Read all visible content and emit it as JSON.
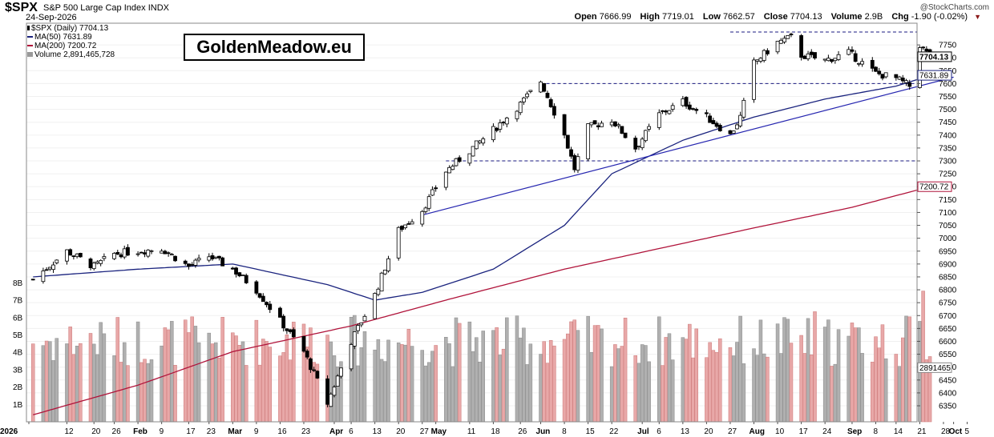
{
  "header": {
    "ticker": "$SPX",
    "index_name": "S&P 500 Large Cap Index",
    "exchange": "INDX",
    "date": "24-Sep-2026",
    "credit": "@StockCharts.com",
    "open_label": "Open",
    "open": "7666.99",
    "high_label": "High",
    "high": "7719.01",
    "low_label": "Low",
    "low": "7662.57",
    "close_label": "Close",
    "close": "7704.13",
    "volume_label": "Volume",
    "volume": "2.9B",
    "chg_label": "Chg",
    "chg": "-1.90 (-0.02%)"
  },
  "legend": {
    "price": "$SPX (Daily) 7704.13",
    "ma50": "MA(50) 7631.89",
    "ma200": "MA(200) 7200.72",
    "volume": "Volume 2,891,465,728"
  },
  "watermark": "GoldenMeadow.eu",
  "colors": {
    "up": "#000000",
    "down": "#000000",
    "vol_up": "#b0b0b0",
    "vol_down": "#e8a8a8",
    "ma50": "#1a237e",
    "ma200": "#b0133a",
    "trend": "#2626b0",
    "ref": "#1a1a80"
  },
  "chart_data": {
    "type": "candlestick",
    "title": "$SPX S&P 500 Large Cap Index INDX",
    "ylim": [
      6310,
      7800
    ],
    "yticks": [
      6350,
      6400,
      6450,
      6500,
      6550,
      6600,
      6650,
      6700,
      6750,
      6800,
      6850,
      6900,
      6950,
      7000,
      7050,
      7100,
      7150,
      7200,
      7250,
      7300,
      7350,
      7400,
      7450,
      7500,
      7550,
      7600,
      7650,
      7700,
      7750
    ],
    "y_labels": {
      "close": "7704.13",
      "ma50": "7631.89",
      "ma200": "7200.72",
      "volume": "2891465"
    },
    "volume_ticks": [
      "1B",
      "2B",
      "3B",
      "4B",
      "5B",
      "6B",
      "7B",
      "8B"
    ],
    "x_labels": [
      "2026",
      "12",
      "20",
      "26",
      "Feb",
      "9",
      "17",
      "23",
      "Mar",
      "9",
      "16",
      "23",
      "Apr",
      "6",
      "13",
      "20",
      "27",
      "May",
      "11",
      "18",
      "26",
      "Jun",
      "8",
      "15",
      "22",
      "Jul",
      "6",
      "13",
      "20",
      "27",
      "Aug",
      "10",
      "17",
      "24",
      "Sep",
      "8",
      "14",
      "21",
      "28",
      "Oct",
      "5"
    ],
    "x_major": [
      "2026",
      "Feb",
      "Mar",
      "Apr",
      "May",
      "Jun",
      "Jul",
      "Aug",
      "Sep",
      "Oct"
    ],
    "close_key_points": [
      [
        "2026-01-02",
        6840
      ],
      [
        "2026-01-12",
        6950
      ],
      [
        "2026-01-20",
        6890
      ],
      [
        "2026-01-26",
        6940
      ],
      [
        "2026-02-09",
        6960
      ],
      [
        "2026-02-17",
        6890
      ],
      [
        "2026-02-23",
        6930
      ],
      [
        "2026-03-02",
        6880
      ],
      [
        "2026-03-09",
        6800
      ],
      [
        "2026-03-16",
        6680
      ],
      [
        "2026-03-23",
        6560
      ],
      [
        "2026-03-30",
        6360
      ],
      [
        "2026-04-06",
        6600
      ],
      [
        "2026-04-13",
        6780
      ],
      [
        "2026-04-20",
        7030
      ],
      [
        "2026-04-27",
        7110
      ],
      [
        "2026-05-04",
        7260
      ],
      [
        "2026-05-11",
        7340
      ],
      [
        "2026-05-18",
        7420
      ],
      [
        "2026-05-26",
        7520
      ],
      [
        "2026-06-01",
        7610
      ],
      [
        "2026-06-08",
        7400
      ],
      [
        "2026-06-11",
        7270
      ],
      [
        "2026-06-15",
        7430
      ],
      [
        "2026-06-22",
        7460
      ],
      [
        "2026-06-29",
        7350
      ],
      [
        "2026-07-06",
        7480
      ],
      [
        "2026-07-13",
        7530
      ],
      [
        "2026-07-20",
        7470
      ],
      [
        "2026-07-27",
        7400
      ],
      [
        "2026-07-30",
        7470
      ],
      [
        "2026-08-03",
        7680
      ],
      [
        "2026-08-10",
        7760
      ],
      [
        "2026-08-14",
        7780
      ],
      [
        "2026-08-17",
        7710
      ],
      [
        "2026-08-24",
        7690
      ],
      [
        "2026-08-31",
        7720
      ],
      [
        "2026-09-08",
        7640
      ],
      [
        "2026-09-14",
        7620
      ],
      [
        "2026-09-18",
        7590
      ],
      [
        "2026-09-21",
        7750
      ],
      [
        "2026-09-24",
        7704
      ]
    ],
    "ma50_key_points": [
      [
        "2026-01-02",
        6850
      ],
      [
        "2026-02-02",
        6880
      ],
      [
        "2026-03-02",
        6900
      ],
      [
        "2026-03-30",
        6820
      ],
      [
        "2026-04-13",
        6760
      ],
      [
        "2026-04-27",
        6790
      ],
      [
        "2026-05-18",
        6880
      ],
      [
        "2026-06-08",
        7050
      ],
      [
        "2026-06-22",
        7250
      ],
      [
        "2026-07-13",
        7380
      ],
      [
        "2026-08-03",
        7470
      ],
      [
        "2026-08-24",
        7540
      ],
      [
        "2026-09-14",
        7590
      ],
      [
        "2026-09-24",
        7631
      ]
    ],
    "ma200_key_points": [
      [
        "2026-01-02",
        6315
      ],
      [
        "2026-02-02",
        6430
      ],
      [
        "2026-03-02",
        6560
      ],
      [
        "2026-04-06",
        6660
      ],
      [
        "2026-05-04",
        6760
      ],
      [
        "2026-06-08",
        6880
      ],
      [
        "2026-07-06",
        6960
      ],
      [
        "2026-08-03",
        7040
      ],
      [
        "2026-09-01",
        7120
      ],
      [
        "2026-09-24",
        7200
      ]
    ],
    "trendline": [
      [
        "2026-04-27",
        7090
      ],
      [
        "2026-10-01",
        7625
      ]
    ],
    "ref_lines": [
      {
        "level": 7800,
        "from": "2026-07-27",
        "to": "2026-10-05"
      },
      {
        "level": 7600,
        "from": "2026-06-01",
        "to": "2026-10-05"
      },
      {
        "level": 7300,
        "from": "2026-05-04",
        "to": "2026-10-05"
      }
    ]
  }
}
